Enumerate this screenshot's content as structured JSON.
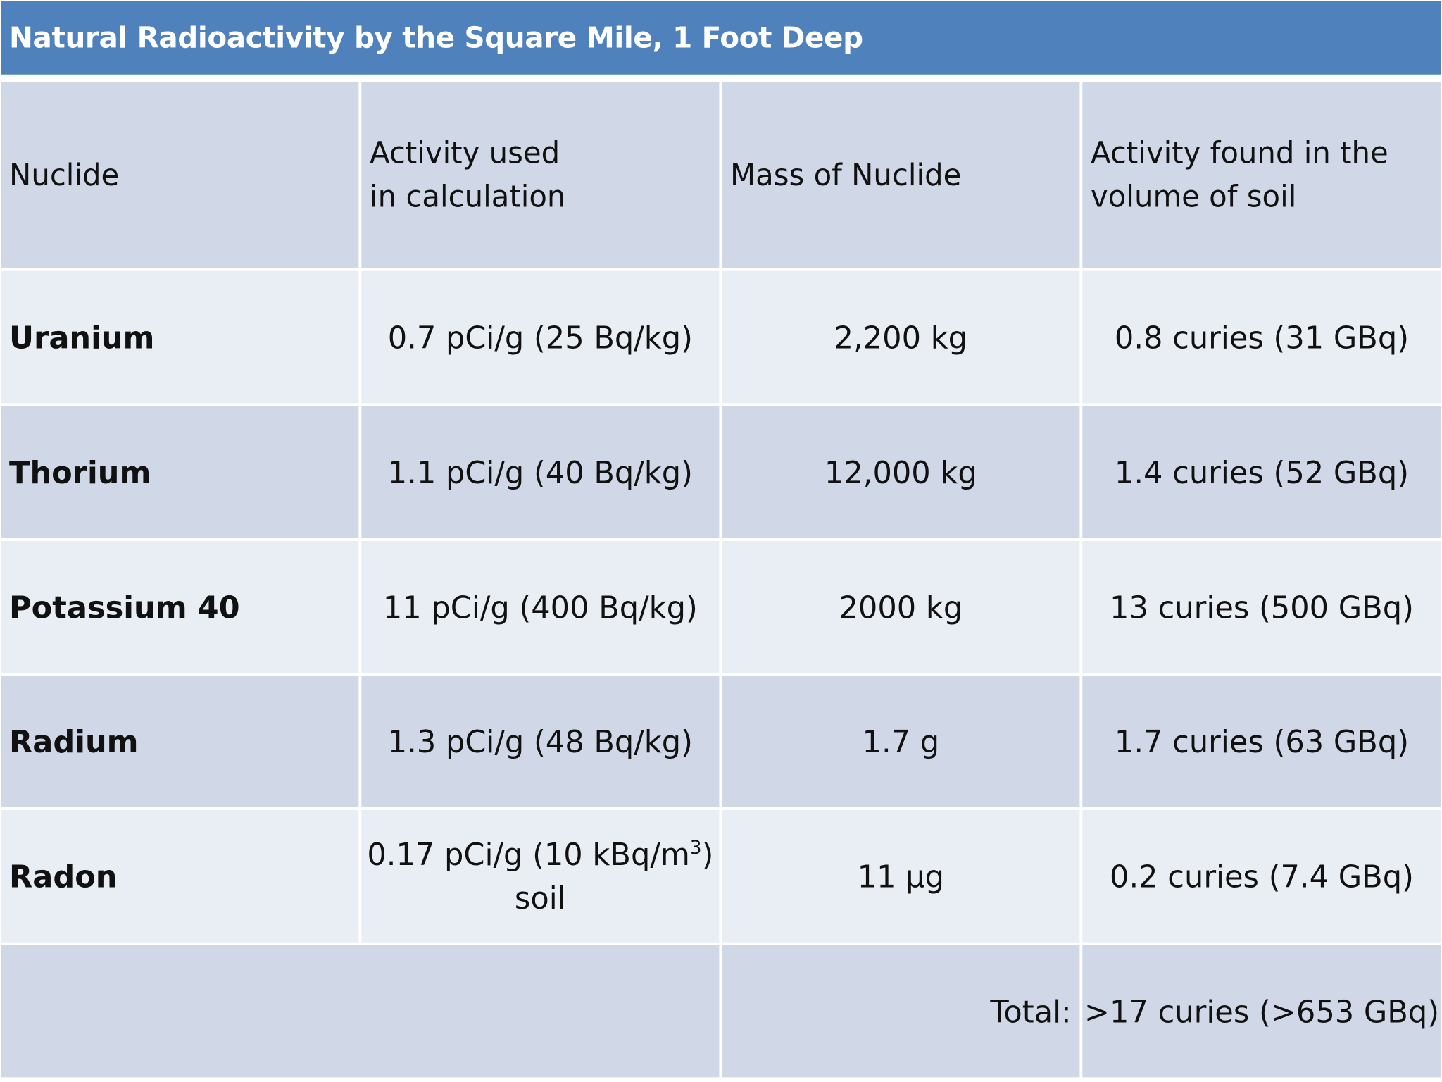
{
  "title": "Natural Radioactivity by the Square Mile, 1 Foot Deep",
  "header": {
    "nuclide": "Nuclide",
    "activity_line1": "Activity used",
    "activity_line2": "in calculation",
    "mass": "Mass of Nuclide",
    "found_line1": "Activity found in the",
    "found_line2": "volume of soil"
  },
  "rows": [
    {
      "nuclide": "Uranium",
      "activity": "0.7 pCi/g (25 Bq/kg)",
      "mass": "2,200 kg",
      "found": "0.8 curies (31 GBq)"
    },
    {
      "nuclide": "Thorium",
      "activity": "1.1 pCi/g (40 Bq/kg)",
      "mass": "12,000 kg",
      "found": "1.4 curies (52 GBq)"
    },
    {
      "nuclide": "Potassium 40",
      "activity": "11 pCi/g (400 Bq/kg)",
      "mass": "2000 kg",
      "found": "13 curies (500 GBq)"
    },
    {
      "nuclide": "Radium",
      "activity": "1.3 pCi/g (48 Bq/kg)",
      "mass": "1.7 g",
      "found": "1.7 curies (63 GBq)"
    },
    {
      "nuclide": "Radon",
      "activity_pre": "0.17 pCi/g (10 kBq/m",
      "activity_sup": "3",
      "activity_post": ")",
      "activity_line2": "soil",
      "mass": "11 µg",
      "found": "0.2 curies (7.4 GBq)"
    }
  ],
  "total": {
    "label": "Total:",
    "value": ">17 curies (>653 GBq)"
  }
}
